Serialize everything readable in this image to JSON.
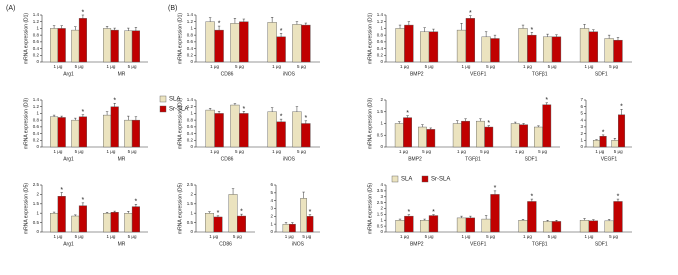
{
  "panels": [
    "(A)",
    "(B)"
  ],
  "legend": {
    "entries": [
      {
        "name": "SLA",
        "color": "#ebe3bf"
      },
      {
        "name": "Sr-SLA",
        "color": "#c00000"
      }
    ]
  },
  "chart_data": [
    {
      "type": "bar",
      "ylabel": "mRNA expression (D1)",
      "groups": [
        "Arg1",
        "MR"
      ],
      "categories": [
        "1 μg",
        "5 μg",
        "1 μg",
        "5 μg"
      ],
      "ylim": [
        0,
        1.4
      ],
      "yticks": [
        0,
        0.2,
        0.4,
        0.6,
        0.8,
        1,
        1.2,
        1.4
      ],
      "series": [
        {
          "values": [
            1.0,
            0.95,
            1.0,
            0.93
          ],
          "errors": [
            0.08,
            0.1,
            0.06,
            0.08
          ],
          "stars": [
            null,
            null,
            null,
            null
          ]
        },
        {
          "values": [
            1.0,
            1.3,
            0.95,
            0.93
          ],
          "errors": [
            0.08,
            0.1,
            0.06,
            0.1
          ],
          "stars": [
            null,
            "*",
            null,
            null
          ]
        }
      ]
    },
    {
      "type": "bar",
      "ylabel": "mRNA expression (D3)",
      "groups": [
        "Arg1",
        "MR"
      ],
      "categories": [
        "1 μg",
        "5 μg",
        "1 μg",
        "5 μg"
      ],
      "ylim": [
        0,
        1.4
      ],
      "yticks": [
        0,
        0.2,
        0.4,
        0.6,
        0.8,
        1,
        1.2,
        1.4
      ],
      "series": [
        {
          "values": [
            0.9,
            0.8,
            0.95,
            0.8
          ],
          "errors": [
            0.05,
            0.06,
            0.1,
            0.12
          ],
          "stars": [
            null,
            null,
            null,
            null
          ]
        },
        {
          "values": [
            0.88,
            0.9,
            1.2,
            0.8
          ],
          "errors": [
            0.04,
            0.06,
            0.1,
            0.1
          ],
          "stars": [
            null,
            "*",
            "*",
            null
          ]
        }
      ]
    },
    {
      "type": "bar",
      "ylabel": "mRNA expression (D5)",
      "groups": [
        "Arg1",
        "MR"
      ],
      "categories": [
        "1 μg",
        "5 μg",
        "1 μg",
        "5 μg"
      ],
      "ylim": [
        0,
        2.5
      ],
      "yticks": [
        0,
        0.5,
        1,
        1.5,
        2,
        2.5
      ],
      "series": [
        {
          "values": [
            1.0,
            0.85,
            1.0,
            1.0
          ],
          "errors": [
            0.06,
            0.06,
            0.05,
            0.1
          ],
          "stars": [
            null,
            null,
            null,
            null
          ]
        },
        {
          "values": [
            1.9,
            1.4,
            1.05,
            1.35
          ],
          "errors": [
            0.2,
            0.15,
            0.06,
            0.12
          ],
          "stars": [
            "*",
            "*",
            null,
            "*"
          ]
        }
      ]
    },
    {
      "type": "bar",
      "ylabel": "mRNA expression (D1)",
      "groups": [
        "CD86",
        "iNOS"
      ],
      "categories": [
        "1 μg",
        "5 μg",
        "1 μg",
        "5 μg"
      ],
      "ylim": [
        0,
        1.4
      ],
      "yticks": [
        0,
        0.2,
        0.4,
        0.6,
        0.8,
        1,
        1.2,
        1.4
      ],
      "series": [
        {
          "values": [
            1.2,
            1.15,
            1.18,
            1.12
          ],
          "errors": [
            0.12,
            0.15,
            0.15,
            0.08
          ],
          "stars": [
            null,
            null,
            null,
            null
          ]
        },
        {
          "values": [
            0.95,
            1.2,
            0.75,
            1.1
          ],
          "errors": [
            0.12,
            0.08,
            0.1,
            0.06
          ],
          "stars": [
            "*",
            null,
            "*",
            null
          ]
        }
      ]
    },
    {
      "type": "bar",
      "ylabel": "mRNA expression (D3)",
      "groups": [
        "CD86",
        "iNOS"
      ],
      "categories": [
        "1 μg",
        "5 μg",
        "1 μg",
        "5 μg"
      ],
      "ylim": [
        0,
        1.4
      ],
      "yticks": [
        0,
        0.2,
        0.4,
        0.6,
        0.8,
        1,
        1.2,
        1.4
      ],
      "series": [
        {
          "values": [
            1.1,
            1.25,
            1.05,
            1.05
          ],
          "errors": [
            0.05,
            0.04,
            0.12,
            0.15
          ],
          "stars": [
            null,
            null,
            null,
            null
          ]
        },
        {
          "values": [
            1.0,
            1.0,
            0.75,
            0.7
          ],
          "errors": [
            0.06,
            0.06,
            0.08,
            0.08
          ],
          "stars": [
            null,
            "*",
            "*",
            "*"
          ]
        }
      ]
    },
    {
      "type": "bar",
      "ylabel": "mRNA expression (D5)",
      "groups": [
        "CD86"
      ],
      "categories": [
        "1 μg",
        "5 μg"
      ],
      "ylim": [
        0,
        2.5
      ],
      "yticks": [
        0,
        0.5,
        1,
        1.5,
        2,
        2.5
      ],
      "series": [
        {
          "values": [
            1.0,
            2.0
          ],
          "errors": [
            0.08,
            0.3
          ],
          "stars": [
            null,
            null
          ]
        },
        {
          "values": [
            0.8,
            0.85
          ],
          "errors": [
            0.06,
            0.1
          ],
          "stars": [
            "*",
            "*"
          ]
        }
      ]
    },
    {
      "type": "bar",
      "groups": [
        "iNOS"
      ],
      "categories": [
        "1 μg",
        "5 μg"
      ],
      "ylim": [
        0,
        6
      ],
      "yticks": [
        0,
        1,
        2,
        3,
        4,
        5,
        6
      ],
      "series": [
        {
          "values": [
            1.0,
            4.3
          ],
          "errors": [
            0.2,
            0.8
          ],
          "stars": [
            null,
            null
          ]
        },
        {
          "values": [
            1.0,
            2.0
          ],
          "errors": [
            0.2,
            0.2
          ],
          "stars": [
            null,
            "*"
          ]
        }
      ]
    },
    {
      "type": "bar",
      "ylabel": "mRNA expression (D1)",
      "groups": [
        "BMP2",
        "VEGF1",
        "TGFβ1",
        "SDF1"
      ],
      "categories": [
        "1 μg",
        "5 μg",
        "1 μg",
        "5 μg",
        "1 μg",
        "5 μg",
        "1 μg",
        "5 μg"
      ],
      "ylim": [
        0,
        1.4
      ],
      "yticks": [
        0,
        0.2,
        0.4,
        0.6,
        0.8,
        1,
        1.2,
        1.4
      ],
      "series": [
        {
          "values": [
            1.0,
            0.9,
            0.95,
            0.75,
            1.0,
            0.75,
            1.0,
            0.7
          ],
          "errors": [
            0.1,
            0.12,
            0.2,
            0.15,
            0.1,
            0.08,
            0.12,
            0.1
          ],
          "stars": [
            null,
            null,
            null,
            null,
            null,
            null,
            null,
            null
          ]
        },
        {
          "values": [
            1.1,
            0.9,
            1.3,
            0.7,
            0.8,
            0.75,
            0.9,
            0.65
          ],
          "errors": [
            0.1,
            0.08,
            0.08,
            0.1,
            0.08,
            0.06,
            0.06,
            0.08
          ],
          "stars": [
            null,
            null,
            "*",
            null,
            "*",
            null,
            null,
            null
          ]
        }
      ]
    },
    {
      "type": "bar",
      "ylabel": "mRNA expression (D3)",
      "groups": [
        "BMP2",
        "TGFβ1",
        "SDF1"
      ],
      "categories": [
        "1 μg",
        "5 μg",
        "1 μg",
        "5 μg",
        "1 μg",
        "5 μg"
      ],
      "ylim": [
        0,
        2
      ],
      "yticks": [
        0,
        0.5,
        1,
        1.5,
        2
      ],
      "series": [
        {
          "values": [
            1.0,
            0.85,
            1.0,
            1.1,
            1.0,
            0.85
          ],
          "errors": [
            0.08,
            0.1,
            0.12,
            0.1,
            0.06,
            0.05
          ],
          "stars": [
            null,
            null,
            null,
            null,
            null,
            null
          ]
        },
        {
          "values": [
            1.25,
            0.75,
            1.1,
            0.85,
            0.95,
            1.8
          ],
          "errors": [
            0.08,
            0.06,
            0.1,
            0.06,
            0.05,
            0.08
          ],
          "stars": [
            "*",
            null,
            null,
            "*",
            null,
            "*"
          ]
        }
      ]
    },
    {
      "type": "bar",
      "groups": [
        "VEGF1"
      ],
      "categories": [
        "1 μg",
        "5 μg"
      ],
      "ylim": [
        0,
        7
      ],
      "yticks": [
        0,
        1,
        2,
        3,
        4,
        5,
        6,
        7
      ],
      "series": [
        {
          "values": [
            1.0,
            1.0
          ],
          "errors": [
            0.1,
            0.3
          ],
          "stars": [
            null,
            null
          ]
        },
        {
          "values": [
            1.6,
            4.8
          ],
          "errors": [
            0.2,
            0.8
          ],
          "stars": [
            "*",
            "*"
          ]
        }
      ]
    },
    {
      "type": "bar",
      "ylabel": "mRNA expression (D5)",
      "groups": [
        "BMP2",
        "VEGF1",
        "TGFβ1",
        "SDF1"
      ],
      "categories": [
        "1 μg",
        "5 μg",
        "1 μg",
        "5 μg",
        "1 μg",
        "5 μg",
        "1 μg",
        "5 μg"
      ],
      "ylim": [
        0,
        4
      ],
      "yticks": [
        0,
        0.5,
        1,
        1.5,
        2,
        2.5,
        3,
        3.5,
        4
      ],
      "series": [
        {
          "values": [
            1.0,
            1.0,
            1.2,
            1.1,
            1.0,
            0.9,
            1.0,
            0.95
          ],
          "errors": [
            0.1,
            0.1,
            0.15,
            0.3,
            0.08,
            0.1,
            0.15,
            0.12
          ],
          "stars": [
            null,
            null,
            null,
            null,
            null,
            null,
            null,
            null
          ]
        },
        {
          "values": [
            1.35,
            1.4,
            1.2,
            3.2,
            2.6,
            0.9,
            0.95,
            2.6
          ],
          "errors": [
            0.12,
            0.08,
            0.15,
            0.3,
            0.2,
            0.1,
            0.1,
            0.2
          ],
          "stars": [
            "*",
            "*",
            null,
            "*",
            "*",
            null,
            null,
            "*"
          ]
        }
      ]
    }
  ]
}
